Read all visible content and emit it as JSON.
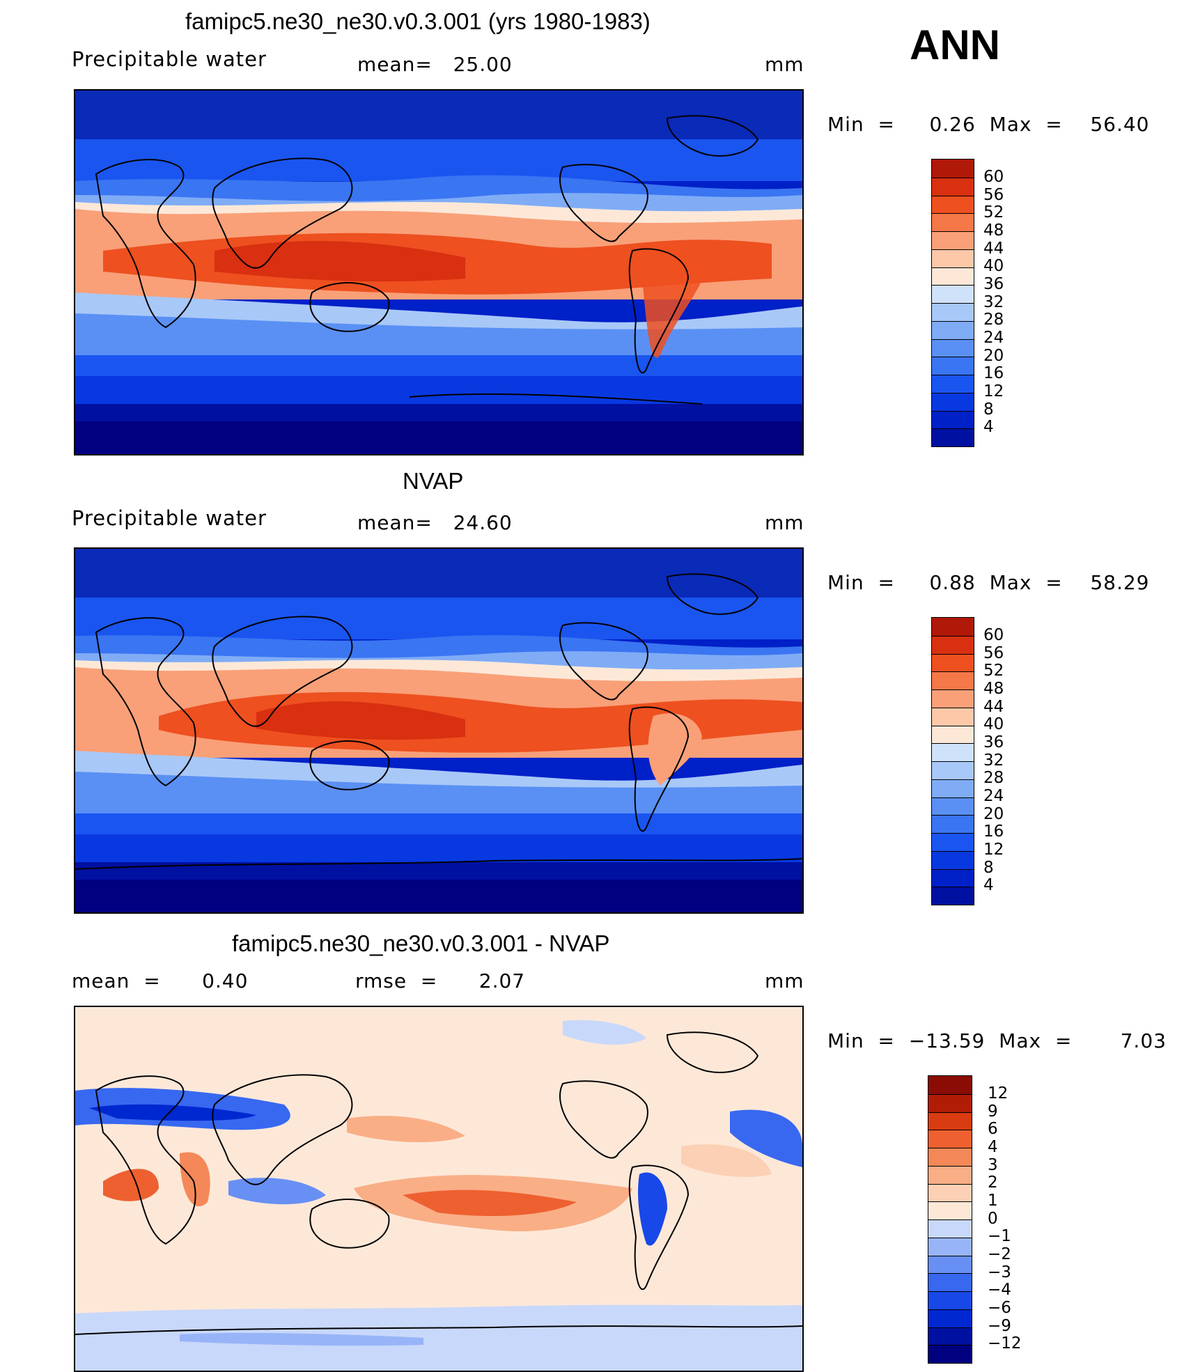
{
  "season": "ANN",
  "colors": {
    "abs_levels": [
      "#000080",
      "#0010a0",
      "#0020c8",
      "#0838e0",
      "#1a55f0",
      "#3a75f2",
      "#5a90f4",
      "#80acf6",
      "#a8c8f8",
      "#d0e2fa",
      "#fde8d8",
      "#fcc8a8",
      "#f9a078",
      "#f57848",
      "#ee5020",
      "#d83010",
      "#b01808",
      "#8a0c04"
    ],
    "diff_levels": [
      "#000080",
      "#0010a0",
      "#0028d0",
      "#1848e8",
      "#3868f0",
      "#6890f4",
      "#98b4f8",
      "#c8d8fb",
      "#fde8d8",
      "#fcd0b4",
      "#f9ae86",
      "#f58858",
      "#ee6030",
      "#d83c10",
      "#b01c06",
      "#8a0c04"
    ]
  },
  "panels": [
    {
      "title": "famipc5.ne30_ne30.v0.3.001 (yrs 1980-1983)",
      "left_label": "Precipitable  water",
      "center_label": "mean=   25.00",
      "units": "mm",
      "minmax": "Min  =     0.26  Max  =    56.40",
      "colorbar_labels": [
        "60",
        "56",
        "52",
        "48",
        "44",
        "40",
        "36",
        "32",
        "28",
        "24",
        "20",
        "16",
        "12",
        "8",
        "4"
      ]
    },
    {
      "title": "NVAP",
      "left_label": "Precipitable  water",
      "center_label": "mean=   24.60",
      "units": "mm",
      "minmax": "Min  =     0.88  Max  =    58.29",
      "colorbar_labels": [
        "60",
        "56",
        "52",
        "48",
        "44",
        "40",
        "36",
        "32",
        "28",
        "24",
        "20",
        "16",
        "12",
        "8",
        "4"
      ]
    },
    {
      "title": "famipc5.ne30_ne30.v0.3.001 - NVAP",
      "left_label": "mean  =      0.40",
      "center_label": "rmse  =      2.07",
      "units": "mm",
      "minmax": "Min  =  −13.59  Max  =       7.03",
      "colorbar_labels": [
        "12",
        "9",
        "6",
        "4",
        "3",
        "2",
        "1",
        "0",
        "−1",
        "−2",
        "−3",
        "−4",
        "−6",
        "−9",
        "−12"
      ]
    }
  ]
}
